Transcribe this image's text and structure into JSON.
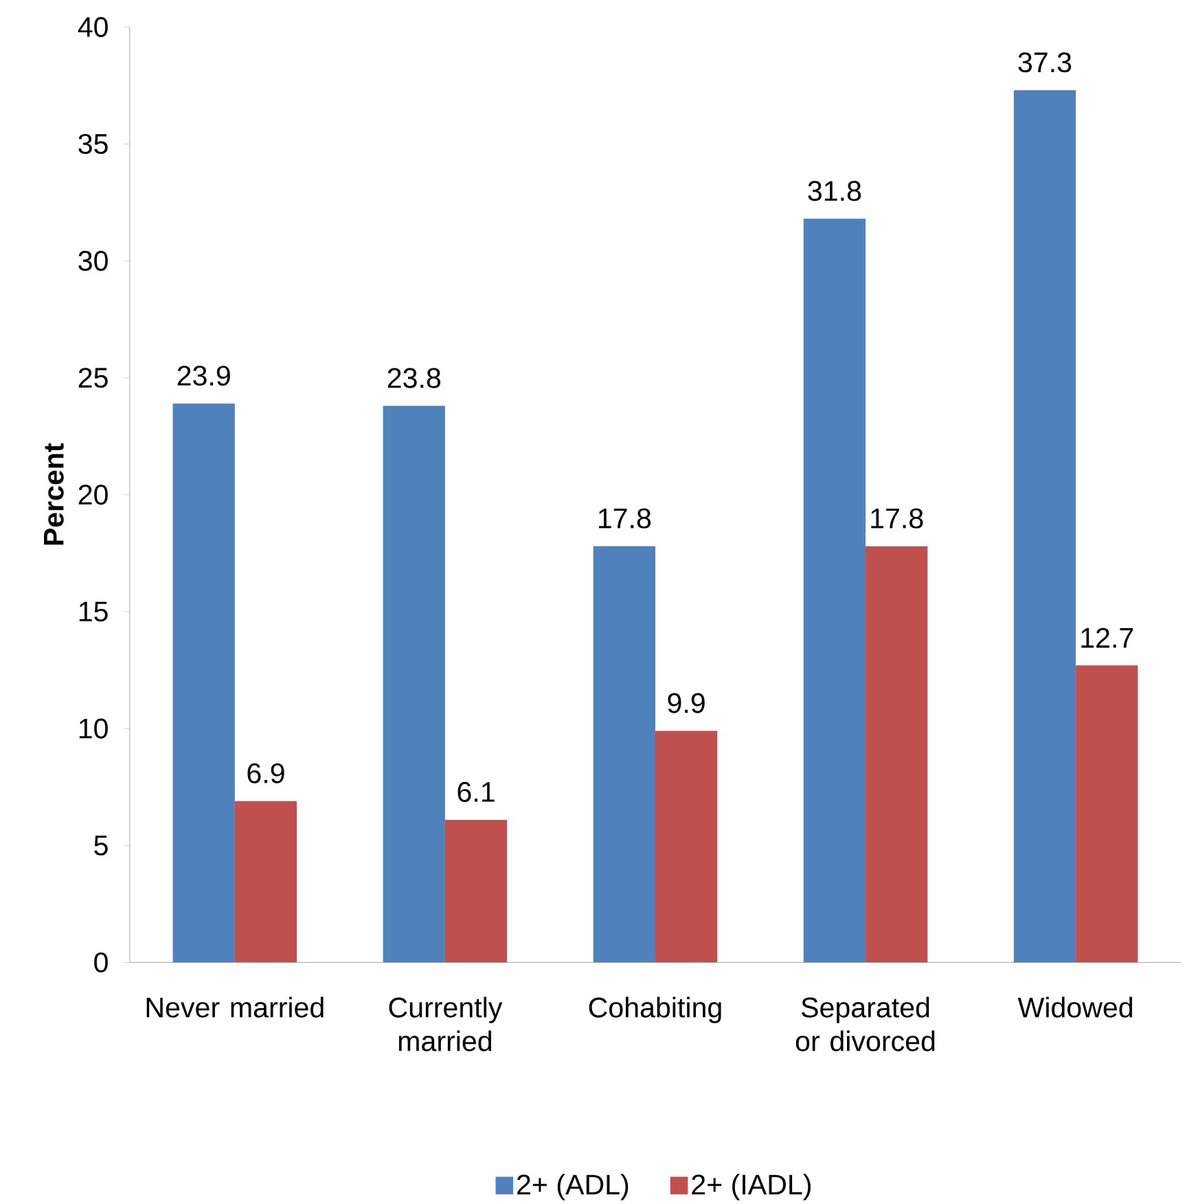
{
  "chart_data": {
    "type": "bar",
    "ylabel": "Percent",
    "categories": [
      "Never married",
      "Currently married",
      "Cohabiting",
      "Separated or divorced",
      "Widowed"
    ],
    "series": [
      {
        "name": "2+ (ADL)",
        "color": "#4f81bd",
        "values": [
          23.9,
          23.8,
          17.8,
          31.8,
          37.3
        ]
      },
      {
        "name": "2+ (IADL)",
        "color": "#c0504d",
        "values": [
          6.9,
          6.1,
          9.9,
          17.8,
          12.7
        ]
      }
    ],
    "ylim": [
      0,
      40
    ],
    "yticks": [
      0,
      5,
      10,
      15,
      20,
      25,
      30,
      35,
      40
    ],
    "data_labels": true,
    "grid": false,
    "legend": "bottom"
  }
}
